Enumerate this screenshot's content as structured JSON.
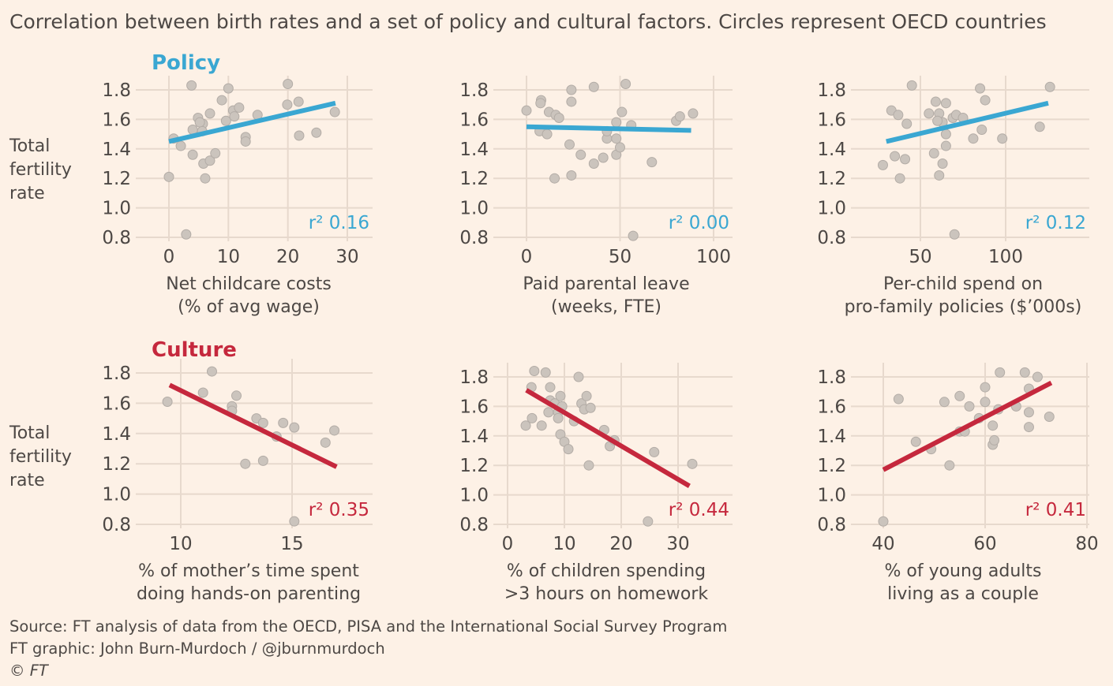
{
  "title": "Correlation between birth rates and a set of policy and cultural factors. Circles represent OECD countries",
  "row_labels": {
    "policy": "Policy",
    "culture": "Culture"
  },
  "y_axis_label": [
    "Total",
    "fertility",
    "rate"
  ],
  "colors": {
    "policy": "#3aa7d2",
    "culture": "#c5283d",
    "dot": "#cbc4bd",
    "dot_stroke": "#b3aca6",
    "grid": "#e7d9cd",
    "background": "#fdf1e6"
  },
  "source": [
    "Source: FT analysis of data from the OECD, PISA and the International Social Survey Program",
    "FT graphic: John Burn-Murdoch / @jburnmurdoch",
    "© FT"
  ],
  "chart_data": [
    {
      "type": "scatter",
      "group": "policy",
      "xlabel": [
        "Net childcare costs",
        "(% of avg wage)"
      ],
      "ylabel": "Total fertility rate",
      "xticks": [
        0,
        10,
        20,
        30
      ],
      "yticks": [
        0.8,
        1.0,
        1.2,
        1.4,
        1.6,
        1.8
      ],
      "ylim": [
        0.8,
        1.8
      ],
      "r2": "r² 0.16",
      "trend": [
        [
          0,
          1.45
        ],
        [
          28,
          1.71
        ]
      ],
      "points": [
        [
          3.8,
          1.83
        ],
        [
          10,
          1.81
        ],
        [
          0,
          1.21
        ],
        [
          2.9,
          0.82
        ],
        [
          0.8,
          1.47
        ],
        [
          2,
          1.42
        ],
        [
          4,
          1.36
        ],
        [
          4,
          1.53
        ],
        [
          4.9,
          1.61
        ],
        [
          5.7,
          1.57
        ],
        [
          5.8,
          1.3
        ],
        [
          6.1,
          1.2
        ],
        [
          6.9,
          1.32
        ],
        [
          7.8,
          1.37
        ],
        [
          6.9,
          1.64
        ],
        [
          8.9,
          1.73
        ],
        [
          9.6,
          1.59
        ],
        [
          10.8,
          1.66
        ],
        [
          11.8,
          1.68
        ],
        [
          11,
          1.62
        ],
        [
          12.9,
          1.48
        ],
        [
          12.9,
          1.45
        ],
        [
          14.9,
          1.63
        ],
        [
          20,
          1.84
        ],
        [
          19.9,
          1.7
        ],
        [
          21.8,
          1.72
        ],
        [
          21.9,
          1.49
        ],
        [
          24.8,
          1.51
        ],
        [
          27.9,
          1.65
        ],
        [
          5.2,
          1.58
        ],
        [
          5.6,
          1.52
        ]
      ]
    },
    {
      "type": "scatter",
      "group": "policy",
      "xlabel": [
        "Paid parental leave",
        "(weeks, FTE)"
      ],
      "ylabel": "Total fertility rate",
      "xticks": [
        0,
        50,
        100
      ],
      "yticks": [
        0.8,
        1.0,
        1.2,
        1.4,
        1.6,
        1.8
      ],
      "ylim": [
        0.8,
        1.8
      ],
      "r2": "r² 0.00",
      "trend": [
        [
          0,
          1.55
        ],
        [
          88,
          1.525
        ]
      ],
      "points": [
        [
          0,
          1.66
        ],
        [
          7.8,
          1.73
        ],
        [
          7.5,
          1.71
        ],
        [
          24,
          1.8
        ],
        [
          24,
          1.72
        ],
        [
          36,
          1.82
        ],
        [
          53,
          1.84
        ],
        [
          12,
          1.65
        ],
        [
          15.6,
          1.63
        ],
        [
          17.4,
          1.61
        ],
        [
          7,
          1.52
        ],
        [
          11,
          1.5
        ],
        [
          23,
          1.43
        ],
        [
          29,
          1.36
        ],
        [
          36,
          1.3
        ],
        [
          41,
          1.34
        ],
        [
          48,
          1.36
        ],
        [
          50,
          1.41
        ],
        [
          43,
          1.47
        ],
        [
          48,
          1.47
        ],
        [
          48,
          1.58
        ],
        [
          51,
          1.65
        ],
        [
          56,
          1.56
        ],
        [
          43,
          1.52
        ],
        [
          15,
          1.2
        ],
        [
          24,
          1.22
        ],
        [
          67,
          1.31
        ],
        [
          57,
          0.81
        ],
        [
          80,
          1.59
        ],
        [
          82,
          1.62
        ],
        [
          89,
          1.64
        ]
      ]
    },
    {
      "type": "scatter",
      "group": "policy",
      "xlabel": [
        "Per-child spend on",
        "pro-family policies ($’000s)"
      ],
      "ylabel": "Total fertility rate",
      "xticks": [
        50,
        100
      ],
      "yticks": [
        0.8,
        1.0,
        1.2,
        1.4,
        1.6,
        1.8
      ],
      "ylim": [
        0.8,
        1.8
      ],
      "r2": "r² 0.12",
      "trend": [
        [
          30,
          1.45
        ],
        [
          125,
          1.71
        ]
      ],
      "points": [
        [
          28,
          1.29
        ],
        [
          33,
          1.66
        ],
        [
          35,
          1.35
        ],
        [
          37,
          1.63
        ],
        [
          38,
          1.2
        ],
        [
          41,
          1.33
        ],
        [
          42,
          1.57
        ],
        [
          45,
          1.83
        ],
        [
          55,
          1.64
        ],
        [
          59,
          1.72
        ],
        [
          61,
          1.64
        ],
        [
          63,
          1.58
        ],
        [
          65,
          1.71
        ],
        [
          60,
          1.59
        ],
        [
          58,
          1.37
        ],
        [
          61,
          1.22
        ],
        [
          63,
          1.3
        ],
        [
          65,
          1.42
        ],
        [
          65,
          1.5
        ],
        [
          69,
          1.61
        ],
        [
          71,
          1.63
        ],
        [
          75,
          1.61
        ],
        [
          70,
          0.82
        ],
        [
          81,
          1.47
        ],
        [
          85,
          1.81
        ],
        [
          88,
          1.73
        ],
        [
          86,
          1.53
        ],
        [
          98,
          1.47
        ],
        [
          120,
          1.55
        ],
        [
          126,
          1.82
        ]
      ]
    },
    {
      "type": "scatter",
      "group": "culture",
      "xlabel": [
        "% of mother’s time spent",
        "doing hands-on parenting"
      ],
      "ylabel": "Total fertility rate",
      "xticks": [
        10,
        15
      ],
      "yticks": [
        0.8,
        1.0,
        1.2,
        1.4,
        1.6,
        1.8
      ],
      "ylim": [
        0.8,
        1.8
      ],
      "r2": "r² 0.35",
      "trend": [
        [
          9.5,
          1.72
        ],
        [
          17,
          1.18
        ]
      ],
      "points": [
        [
          9.4,
          1.61
        ],
        [
          11,
          1.67
        ],
        [
          11.4,
          1.81
        ],
        [
          12.3,
          1.58
        ],
        [
          12.3,
          1.55
        ],
        [
          12.5,
          1.65
        ],
        [
          12.9,
          1.2
        ],
        [
          13.4,
          1.5
        ],
        [
          13.7,
          1.47
        ],
        [
          13.7,
          1.22
        ],
        [
          14.3,
          1.38
        ],
        [
          14.6,
          1.47
        ],
        [
          15.1,
          1.44
        ],
        [
          15.1,
          0.82
        ],
        [
          16.5,
          1.34
        ],
        [
          16.9,
          1.42
        ]
      ]
    },
    {
      "type": "scatter",
      "group": "culture",
      "xlabel": [
        "% of children spending",
        ">3 hours on homework"
      ],
      "ylabel": "Total fertility rate",
      "xticks": [
        0,
        10,
        20,
        30
      ],
      "yticks": [
        0.8,
        1.0,
        1.2,
        1.4,
        1.6,
        1.8
      ],
      "ylim": [
        0.8,
        1.8
      ],
      "r2": "r² 0.44",
      "trend": [
        [
          3.3,
          1.71
        ],
        [
          32,
          1.06
        ]
      ],
      "points": [
        [
          3.2,
          1.47
        ],
        [
          4.2,
          1.73
        ],
        [
          4.7,
          1.84
        ],
        [
          6,
          1.47
        ],
        [
          6.7,
          1.83
        ],
        [
          7.5,
          1.73
        ],
        [
          7.5,
          1.64
        ],
        [
          7.2,
          1.56
        ],
        [
          8.3,
          1.62
        ],
        [
          8.9,
          1.56
        ],
        [
          8.9,
          1.52
        ],
        [
          9.3,
          1.67
        ],
        [
          9.3,
          1.41
        ],
        [
          9.6,
          1.6
        ],
        [
          10,
          1.36
        ],
        [
          10.7,
          1.31
        ],
        [
          11.7,
          1.5
        ],
        [
          12.5,
          1.8
        ],
        [
          13,
          1.62
        ],
        [
          13.5,
          1.58
        ],
        [
          13.9,
          1.67
        ],
        [
          14.6,
          1.59
        ],
        [
          14.3,
          1.2
        ],
        [
          17,
          1.44
        ],
        [
          18,
          1.33
        ],
        [
          18.8,
          1.37
        ],
        [
          25.8,
          1.29
        ],
        [
          24.7,
          0.82
        ],
        [
          32.5,
          1.21
        ],
        [
          4.3,
          1.52
        ]
      ]
    },
    {
      "type": "scatter",
      "group": "culture",
      "xlabel": [
        "% of young adults",
        "living as a couple"
      ],
      "ylabel": "Total fertility rate",
      "xticks": [
        40,
        60,
        80
      ],
      "yticks": [
        0.8,
        1.0,
        1.2,
        1.4,
        1.6,
        1.8
      ],
      "ylim": [
        0.8,
        1.8
      ],
      "r2": "r² 0.41",
      "trend": [
        [
          40,
          1.17
        ],
        [
          73,
          1.76
        ]
      ],
      "points": [
        [
          40,
          0.82
        ],
        [
          43,
          1.65
        ],
        [
          46.4,
          1.36
        ],
        [
          49.4,
          1.31
        ],
        [
          52,
          1.63
        ],
        [
          53,
          1.2
        ],
        [
          55,
          1.67
        ],
        [
          55,
          1.43
        ],
        [
          56,
          1.43
        ],
        [
          56.9,
          1.6
        ],
        [
          58.8,
          1.52
        ],
        [
          60,
          1.73
        ],
        [
          60,
          1.63
        ],
        [
          61.5,
          1.47
        ],
        [
          61.5,
          1.34
        ],
        [
          61.8,
          1.37
        ],
        [
          62.6,
          1.58
        ],
        [
          62.9,
          1.83
        ],
        [
          66.1,
          1.6
        ],
        [
          67.8,
          1.83
        ],
        [
          68.6,
          1.72
        ],
        [
          68.6,
          1.56
        ],
        [
          68.6,
          1.46
        ],
        [
          70.3,
          1.8
        ],
        [
          72.6,
          1.53
        ]
      ]
    }
  ]
}
